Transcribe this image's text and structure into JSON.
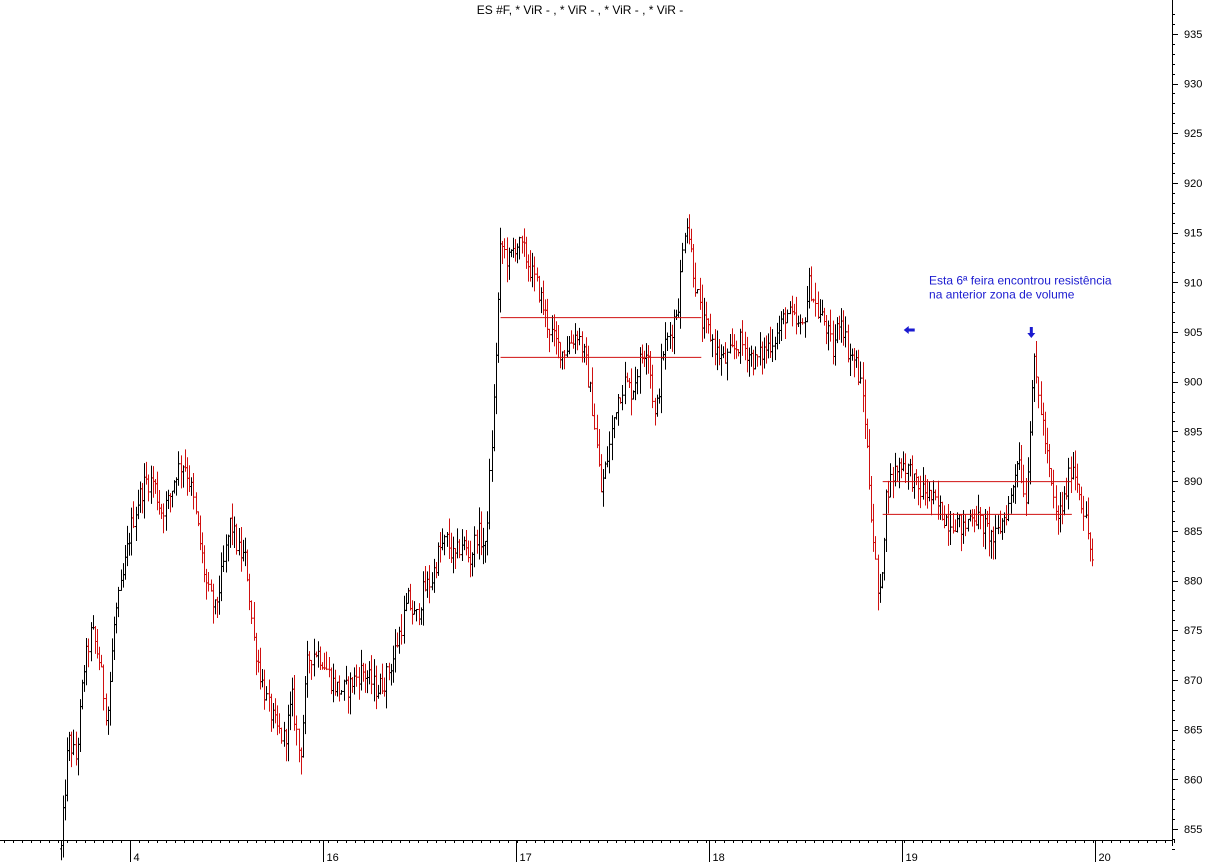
{
  "chart_data": {
    "type": "bar",
    "subtype": "ohlc",
    "title": "ES #F, * ViR - , * ViR - , * ViR - , * ViR -",
    "ylim": [
      852,
      938
    ],
    "yticks": [
      855,
      860,
      865,
      870,
      875,
      880,
      885,
      890,
      895,
      900,
      905,
      910,
      915,
      920,
      925,
      930,
      935
    ],
    "x_range": [
      13.62,
      20.4
    ],
    "x_day_labels": [
      {
        "label": "4",
        "x": 14.0
      },
      {
        "label": "16",
        "x": 15.0
      },
      {
        "label": "17",
        "x": 16.0
      },
      {
        "label": "18",
        "x": 17.0
      },
      {
        "label": "19",
        "x": 18.0
      },
      {
        "label": "20",
        "x": 19.0
      }
    ],
    "up_color": "#000000",
    "down_color": "#d01010",
    "price_path": [
      [
        13.64,
        853
      ],
      [
        13.68,
        864
      ],
      [
        13.72,
        862
      ],
      [
        13.76,
        871
      ],
      [
        13.8,
        875
      ],
      [
        13.84,
        872
      ],
      [
        13.88,
        866
      ],
      [
        13.92,
        876
      ],
      [
        13.96,
        880
      ],
      [
        14.0,
        885
      ],
      [
        14.04,
        888
      ],
      [
        14.08,
        890
      ],
      [
        14.12,
        890
      ],
      [
        14.16,
        887
      ],
      [
        14.2,
        888
      ],
      [
        14.24,
        891
      ],
      [
        14.28,
        892
      ],
      [
        14.32,
        889
      ],
      [
        14.36,
        884
      ],
      [
        14.4,
        879
      ],
      [
        14.44,
        877
      ],
      [
        14.48,
        881
      ],
      [
        14.52,
        886
      ],
      [
        14.56,
        883
      ],
      [
        14.6,
        882
      ],
      [
        14.64,
        874
      ],
      [
        14.68,
        870
      ],
      [
        14.72,
        867
      ],
      [
        14.76,
        865
      ],
      [
        14.8,
        864
      ],
      [
        14.84,
        868
      ],
      [
        14.88,
        862
      ],
      [
        14.92,
        872
      ],
      [
        14.96,
        873
      ],
      [
        15.0,
        872
      ],
      [
        15.04,
        870
      ],
      [
        15.08,
        869
      ],
      [
        15.12,
        869
      ],
      [
        15.16,
        870
      ],
      [
        15.2,
        871
      ],
      [
        15.24,
        870
      ],
      [
        15.28,
        869
      ],
      [
        15.32,
        870
      ],
      [
        15.36,
        872
      ],
      [
        15.4,
        875
      ],
      [
        15.44,
        878
      ],
      [
        15.48,
        876
      ],
      [
        15.52,
        879
      ],
      [
        15.56,
        880
      ],
      [
        15.6,
        883
      ],
      [
        15.64,
        884
      ],
      [
        15.68,
        882
      ],
      [
        15.72,
        884
      ],
      [
        15.76,
        882
      ],
      [
        15.8,
        885
      ],
      [
        15.84,
        883
      ],
      [
        15.88,
        896
      ],
      [
        15.92,
        914
      ],
      [
        15.96,
        912
      ],
      [
        16.0,
        914
      ],
      [
        16.04,
        913
      ],
      [
        16.08,
        911
      ],
      [
        16.12,
        909
      ],
      [
        16.16,
        906
      ],
      [
        16.2,
        904
      ],
      [
        16.24,
        903
      ],
      [
        16.28,
        904
      ],
      [
        16.32,
        905
      ],
      [
        16.36,
        902
      ],
      [
        16.4,
        897
      ],
      [
        16.44,
        889
      ],
      [
        16.48,
        893
      ],
      [
        16.52,
        898
      ],
      [
        16.56,
        900
      ],
      [
        16.6,
        899
      ],
      [
        16.64,
        902
      ],
      [
        16.68,
        904
      ],
      [
        16.72,
        896
      ],
      [
        16.76,
        903
      ],
      [
        16.8,
        905
      ],
      [
        16.84,
        908
      ],
      [
        16.88,
        917
      ],
      [
        16.92,
        911
      ],
      [
        16.96,
        906
      ],
      [
        17.0,
        905
      ],
      [
        17.04,
        903
      ],
      [
        17.08,
        902
      ],
      [
        17.12,
        903
      ],
      [
        17.16,
        904
      ],
      [
        17.2,
        903
      ],
      [
        17.24,
        902
      ],
      [
        17.28,
        903
      ],
      [
        17.32,
        904
      ],
      [
        17.36,
        905
      ],
      [
        17.4,
        907
      ],
      [
        17.44,
        906
      ],
      [
        17.48,
        905
      ],
      [
        17.52,
        910
      ],
      [
        17.56,
        907
      ],
      [
        17.6,
        906
      ],
      [
        17.64,
        903
      ],
      [
        17.68,
        907
      ],
      [
        17.72,
        903
      ],
      [
        17.76,
        902
      ],
      [
        17.8,
        898
      ],
      [
        17.84,
        887
      ],
      [
        17.88,
        877
      ],
      [
        17.92,
        889
      ],
      [
        17.96,
        891
      ],
      [
        18.0,
        892
      ],
      [
        18.04,
        891
      ],
      [
        18.08,
        889
      ],
      [
        18.12,
        889
      ],
      [
        18.16,
        888
      ],
      [
        18.2,
        887
      ],
      [
        18.24,
        886
      ],
      [
        18.28,
        886
      ],
      [
        18.32,
        885
      ],
      [
        18.36,
        887
      ],
      [
        18.4,
        886
      ],
      [
        18.44,
        885
      ],
      [
        18.48,
        884
      ],
      [
        18.52,
        886
      ],
      [
        18.56,
        888
      ],
      [
        18.6,
        893
      ],
      [
        18.64,
        888
      ],
      [
        18.68,
        902
      ],
      [
        18.72,
        897
      ],
      [
        18.76,
        891
      ],
      [
        18.8,
        886
      ],
      [
        18.84,
        888
      ],
      [
        18.88,
        892
      ],
      [
        18.92,
        889
      ],
      [
        18.96,
        885
      ],
      [
        18.99,
        881
      ]
    ],
    "horizontal_lines": [
      {
        "y": 906.5,
        "x_start": 15.92,
        "x_end": 16.96
      },
      {
        "y": 902.5,
        "x_start": 15.92,
        "x_end": 16.96
      },
      {
        "y": 890.0,
        "x_start": 17.9,
        "x_end": 18.88
      },
      {
        "y": 886.7,
        "x_start": 17.9,
        "x_end": 18.88
      }
    ],
    "arrows": [
      {
        "direction": "left",
        "x": 18.04,
        "y": 905.2
      },
      {
        "direction": "down",
        "x": 18.67,
        "y": 905.0
      }
    ],
    "annotation": {
      "line1": "Esta 6ª feira encontrou resistência",
      "line2": "na anterior zona de volume",
      "x": 18.14,
      "y": 909.8
    },
    "grid": false
  }
}
